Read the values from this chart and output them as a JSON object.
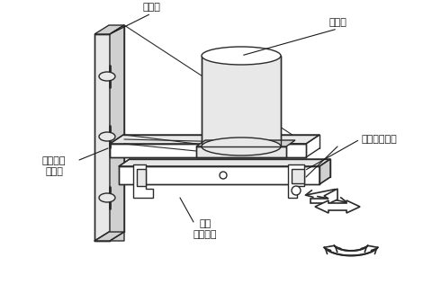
{
  "background_color": "#ffffff",
  "labels": {
    "dao_ju_ku": "刀具庫",
    "dong_li_tou": "动力头",
    "zhu_zhou_dao": "主轴中的刀具",
    "dao_ju_ku_zhong": "刀具庫中\n的刀具",
    "hui_zhuan": "回转\n换刀机构"
  },
  "lc": "#2a2a2a",
  "lw": 1.0,
  "fig_width": 4.81,
  "fig_height": 3.16,
  "dpi": 100
}
